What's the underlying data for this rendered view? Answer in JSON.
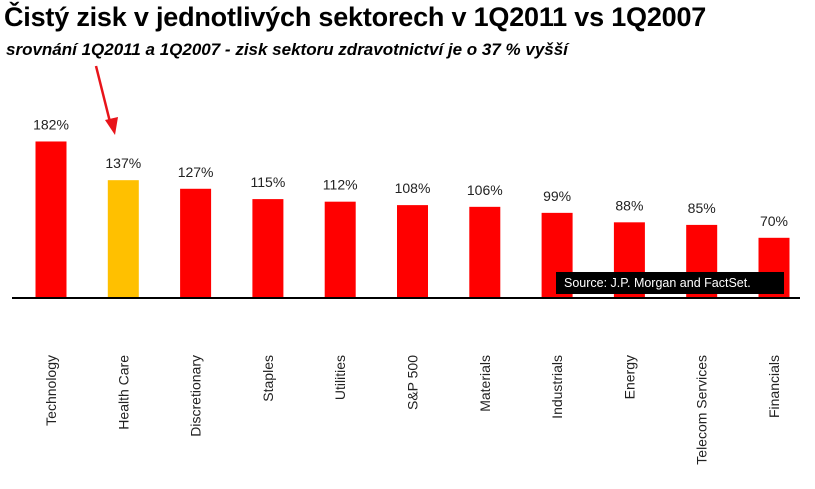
{
  "title": "Čistý zisk v jednotlivých sektorech v 1Q2011 vs 1Q2007",
  "subtitle": "srovnání 1Q2011 a 1Q2007 - zisk sektoru zdravotnictví je o 37 % vyšší",
  "source": "Source: J.P. Morgan and FactSet.",
  "colors": {
    "bar": "#ff0000",
    "highlight": "#ffc000",
    "arrow": "#e8141a",
    "axis": "#000000"
  },
  "chart_data": {
    "type": "bar",
    "categories": [
      "Technology",
      "Health Care",
      "Discretionary",
      "Staples",
      "Utilities",
      "S&P 500",
      "Materials",
      "Industrials",
      "Energy",
      "Telecom Services",
      "Financials"
    ],
    "values": [
      182,
      137,
      127,
      115,
      112,
      108,
      106,
      99,
      88,
      85,
      70
    ],
    "data_labels": [
      "182%",
      "137%",
      "127%",
      "115%",
      "112%",
      "108%",
      "106%",
      "99%",
      "88%",
      "85%",
      "70%"
    ],
    "highlight_index": 1,
    "xlabel": "",
    "ylabel": "",
    "grid": false,
    "legend": "none"
  }
}
